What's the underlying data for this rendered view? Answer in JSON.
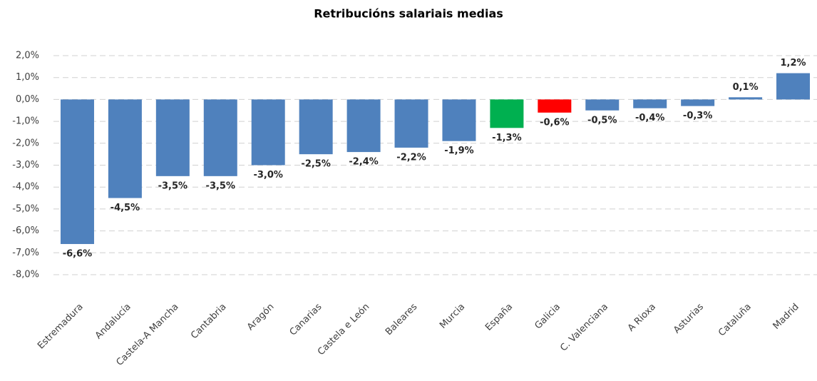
{
  "chart_data": {
    "type": "bar",
    "title": "Retribucións salariais medias",
    "categories": [
      "Estremadura",
      "Andalucía",
      "Castela-A Mancha",
      "Cantabria",
      "Aragón",
      "Canarias",
      "Castela e León",
      "Baleares",
      "Murcia",
      "España",
      "Galicia",
      "C. Valenciana",
      "A Rioxa",
      "Asturias",
      "Cataluña",
      "Madrid"
    ],
    "values": [
      -6.6,
      -4.5,
      -3.5,
      -3.5,
      -3.0,
      -2.5,
      -2.4,
      -2.2,
      -1.9,
      -1.3,
      -0.6,
      -0.5,
      -0.4,
      -0.3,
      0.1,
      1.2
    ],
    "value_labels": [
      "-6,6%",
      "-4,5%",
      "-3,5%",
      "-3,5%",
      "-3,0%",
      "-2,5%",
      "-2,4%",
      "-2,2%",
      "-1,9%",
      "-1,3%",
      "-0,6%",
      "-0,5%",
      "-0,4%",
      "-0,3%",
      "0,1%",
      "1,2%"
    ],
    "colors": [
      "#4f81bd",
      "#4f81bd",
      "#4f81bd",
      "#4f81bd",
      "#4f81bd",
      "#4f81bd",
      "#4f81bd",
      "#4f81bd",
      "#4f81bd",
      "#00b050",
      "#ff0000",
      "#4f81bd",
      "#4f81bd",
      "#4f81bd",
      "#4f81bd",
      "#4f81bd"
    ],
    "ylim": [
      -8,
      2
    ],
    "yticks": [
      {
        "value": 2,
        "label": "2,0%"
      },
      {
        "value": 1,
        "label": "1,0%"
      },
      {
        "value": 0,
        "label": "0,0%"
      },
      {
        "value": -1,
        "label": "-1,0%"
      },
      {
        "value": -2,
        "label": "-2,0%"
      },
      {
        "value": -3,
        "label": "-3,0%"
      },
      {
        "value": -4,
        "label": "-4,0%"
      },
      {
        "value": -5,
        "label": "-5,0%"
      },
      {
        "value": -6,
        "label": "-6,0%"
      },
      {
        "value": -7,
        "label": "-7,0%"
      },
      {
        "value": -8,
        "label": "-8,0%"
      }
    ],
    "grid": true
  }
}
